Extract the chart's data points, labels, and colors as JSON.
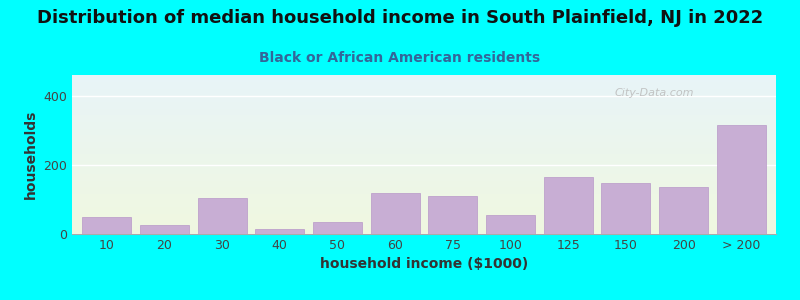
{
  "title": "Distribution of median household income in South Plainfield, NJ in 2022",
  "subtitle": "Black or African American residents",
  "xlabel": "household income ($1000)",
  "ylabel": "households",
  "background_color": "#00FFFF",
  "bar_color": "#c8aed4",
  "bar_edge_color": "#b898c8",
  "categories": [
    "10",
    "20",
    "30",
    "40",
    "50",
    "60",
    "75",
    "100",
    "125",
    "150",
    "200",
    "> 200"
  ],
  "values": [
    50,
    25,
    105,
    15,
    35,
    120,
    110,
    55,
    165,
    148,
    135,
    315
  ],
  "ylim": [
    0,
    460
  ],
  "yticks": [
    0,
    200,
    400
  ],
  "title_fontsize": 13,
  "subtitle_fontsize": 10,
  "axis_label_fontsize": 10,
  "tick_fontsize": 9,
  "watermark_text": "City-Data.com"
}
